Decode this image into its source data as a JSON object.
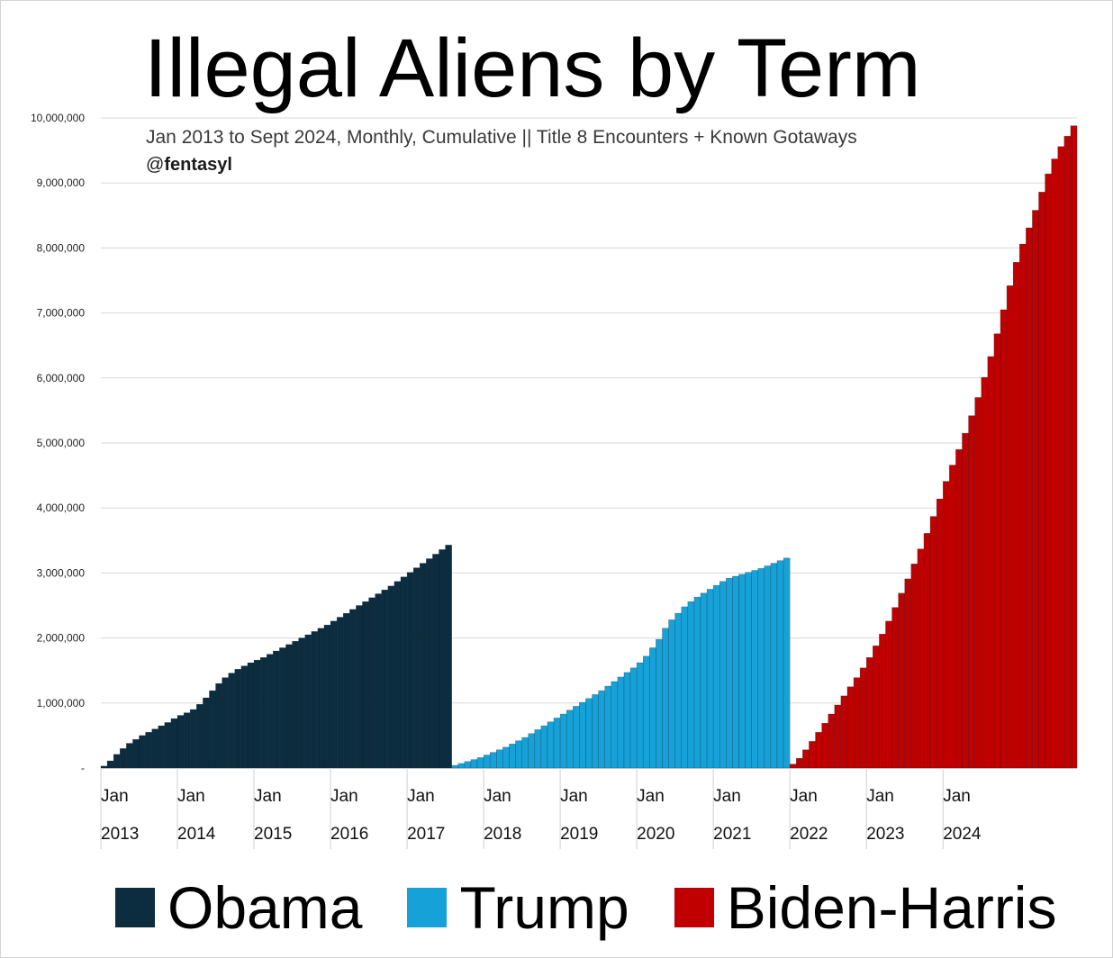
{
  "chart_data": {
    "type": "bar",
    "title": "Illegal Aliens by Term",
    "subtitle": "Jan 2013 to Sept 2024, Monthly, Cumulative || Title 8 Encounters + Known Gotaways",
    "handle_prefix": "@",
    "handle_name": "fentasyl",
    "ylim": [
      0,
      10000000
    ],
    "yticks": [
      {
        "value": 0,
        "label": "-"
      },
      {
        "value": 1000000,
        "label": "1,000,000"
      },
      {
        "value": 2000000,
        "label": "2,000,000"
      },
      {
        "value": 3000000,
        "label": "3,000,000"
      },
      {
        "value": 4000000,
        "label": "4,000,000"
      },
      {
        "value": 5000000,
        "label": "5,000,000"
      },
      {
        "value": 6000000,
        "label": "6,000,000"
      },
      {
        "value": 7000000,
        "label": "7,000,000"
      },
      {
        "value": 8000000,
        "label": "8,000,000"
      },
      {
        "value": 9000000,
        "label": "9,000,000"
      },
      {
        "value": 10000000,
        "label": "10,000,000"
      }
    ],
    "grid": true,
    "xticks": [
      {
        "month_label": "Jan",
        "year_label": "2013"
      },
      {
        "month_label": "Jan",
        "year_label": "2014"
      },
      {
        "month_label": "Jan",
        "year_label": "2015"
      },
      {
        "month_label": "Jan",
        "year_label": "2016"
      },
      {
        "month_label": "Jan",
        "year_label": "2017"
      },
      {
        "month_label": "Jan",
        "year_label": "2018"
      },
      {
        "month_label": "Jan",
        "year_label": "2019"
      },
      {
        "month_label": "Jan",
        "year_label": "2020"
      },
      {
        "month_label": "Jan",
        "year_label": "2021"
      },
      {
        "month_label": "Jan",
        "year_label": "2022"
      },
      {
        "month_label": "Jan",
        "year_label": "2023"
      },
      {
        "month_label": "Jan",
        "year_label": "2024"
      }
    ],
    "legend_position": "bottom",
    "series": [
      {
        "name": "Obama",
        "color": "#0c2c40",
        "start_month": "2013-01",
        "values": [
          30000,
          110000,
          210000,
          300000,
          380000,
          440000,
          500000,
          550000,
          600000,
          650000,
          700000,
          760000,
          810000,
          850000,
          900000,
          980000,
          1080000,
          1190000,
          1300000,
          1390000,
          1460000,
          1520000,
          1570000,
          1620000,
          1660000,
          1700000,
          1750000,
          1800000,
          1850000,
          1900000,
          1950000,
          2000000,
          2050000,
          2100000,
          2150000,
          2200000,
          2260000,
          2320000,
          2380000,
          2440000,
          2500000,
          2560000,
          2620000,
          2680000,
          2740000,
          2800000,
          2870000,
          2940000,
          3010000,
          3080000,
          3150000,
          3220000,
          3290000,
          3360000,
          3430000
        ]
      },
      {
        "name": "Trump",
        "color": "#16a2d8",
        "start_month": "2017-01",
        "values": [
          40000,
          70000,
          100000,
          130000,
          160000,
          200000,
          240000,
          280000,
          320000,
          370000,
          420000,
          470000,
          530000,
          590000,
          650000,
          710000,
          770000,
          830000,
          890000,
          950000,
          1010000,
          1070000,
          1130000,
          1190000,
          1260000,
          1330000,
          1400000,
          1470000,
          1540000,
          1620000,
          1720000,
          1850000,
          1980000,
          2150000,
          2280000,
          2380000,
          2480000,
          2560000,
          2630000,
          2690000,
          2750000,
          2810000,
          2870000,
          2920000,
          2950000,
          2980000,
          3010000,
          3040000,
          3070000,
          3110000,
          3150000,
          3190000,
          3230000
        ]
      },
      {
        "name": "Biden-Harris",
        "color": "#c00000",
        "start_month": "2021-01",
        "values": [
          60000,
          150000,
          280000,
          410000,
          550000,
          690000,
          830000,
          970000,
          1110000,
          1250000,
          1390000,
          1540000,
          1700000,
          1880000,
          2060000,
          2260000,
          2470000,
          2690000,
          2910000,
          3140000,
          3370000,
          3610000,
          3870000,
          4140000,
          4410000,
          4660000,
          4900000,
          5150000,
          5420000,
          5700000,
          6010000,
          6330000,
          6680000,
          7050000,
          7420000,
          7780000,
          8060000,
          8310000,
          8580000,
          8860000,
          9140000,
          9370000,
          9560000,
          9720000,
          9880000
        ]
      }
    ]
  }
}
